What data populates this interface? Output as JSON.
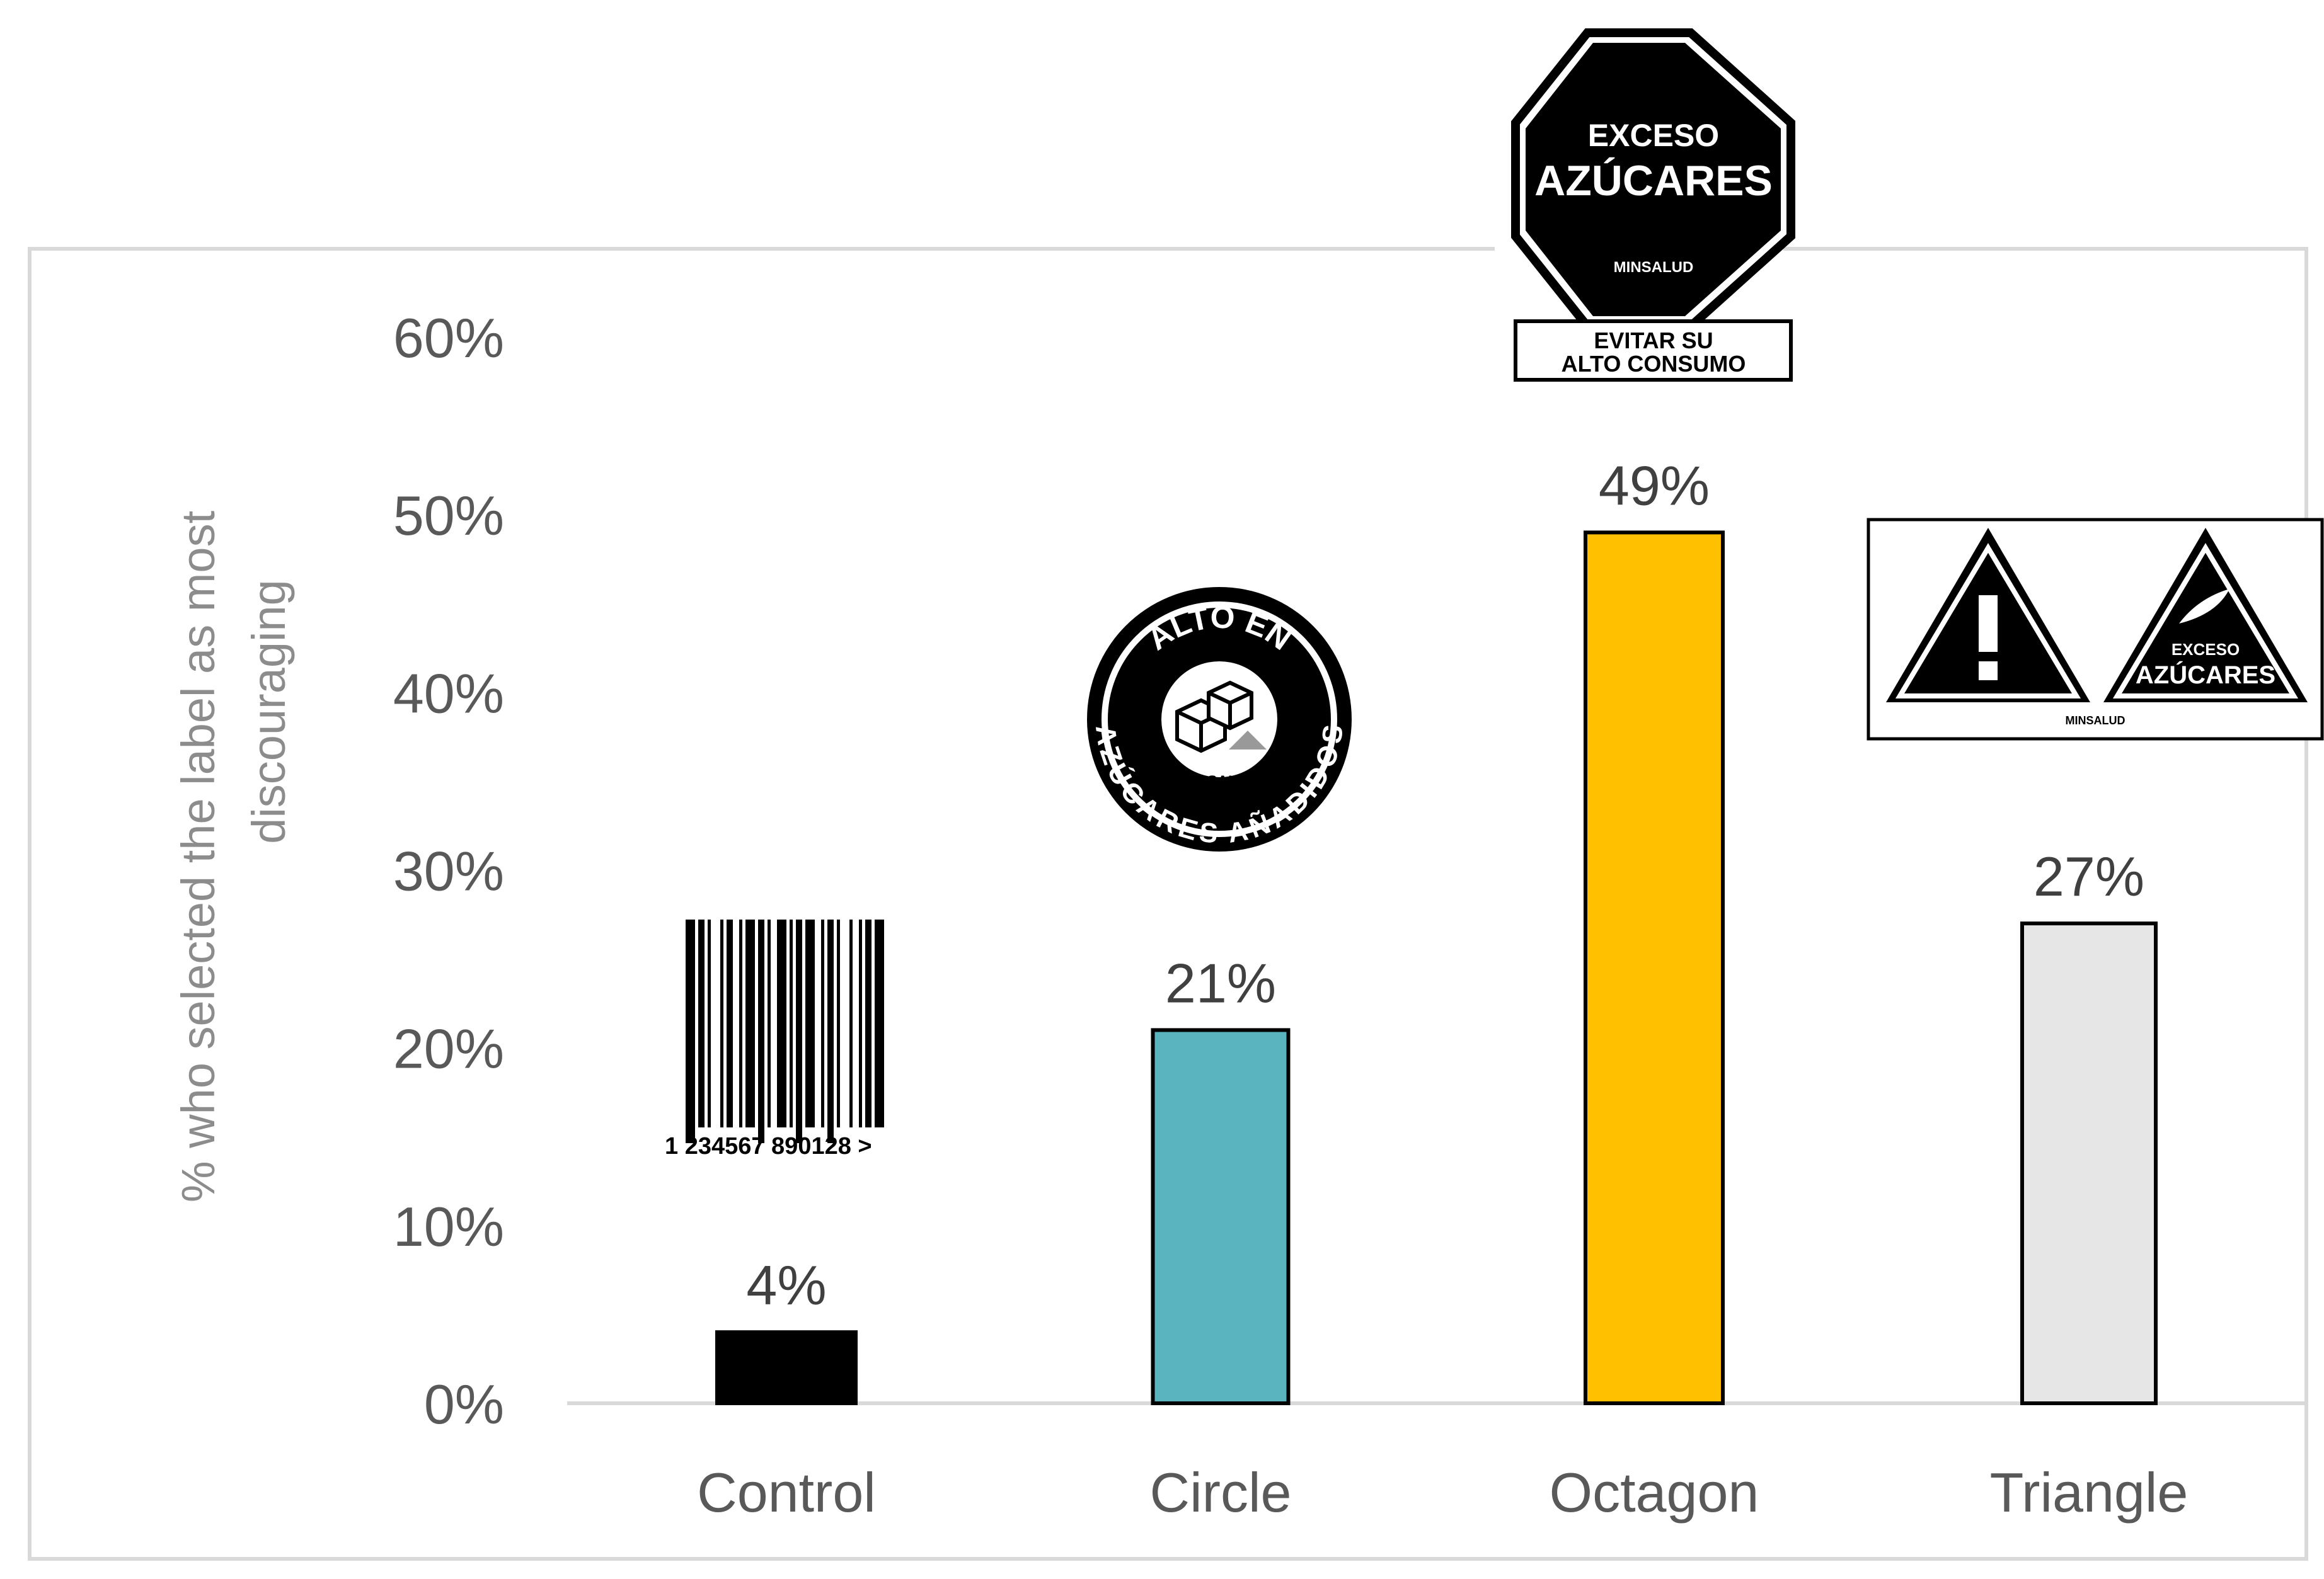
{
  "chart_data": {
    "type": "bar",
    "categories": [
      "Control",
      "Circle",
      "Octagon",
      "Triangle"
    ],
    "values": [
      4,
      21,
      49,
      27
    ],
    "value_labels": [
      "4%",
      "21%",
      "49%",
      "27%"
    ],
    "colors": [
      "#000000",
      "#5ab4bf",
      "#ffc000",
      "#e6e6e6"
    ],
    "ylabel_line1": "% who selected the label as most",
    "ylabel_line2": "discouraging",
    "ylim": [
      0,
      60
    ],
    "yticks": [
      "0%",
      "10%",
      "20%",
      "30%",
      "40%",
      "50%",
      "60%"
    ],
    "grid": false,
    "legend": "none"
  },
  "icons": {
    "barcode": {
      "name": "barcode-icon",
      "digits": "1 234567 890128 >"
    },
    "circle_seal": {
      "name": "circle-warning-seal-icon",
      "top_text": "ALTO EN",
      "bottom_text": "AZÚCARES AÑADIDOS",
      "brand": "MINSALUD"
    },
    "octagon_seal": {
      "name": "octagon-warning-seal-icon",
      "line1": "EXCESO",
      "line2": "AZÚCARES",
      "brand": "MINSALUD",
      "box_line1": "EVITAR SU",
      "box_line2": "ALTO CONSUMO"
    },
    "triangle_seal": {
      "name": "triangle-warning-seal-icon",
      "line1": "EXCESO",
      "line2": "AZÚCARES",
      "brand": "MINSALUD"
    }
  }
}
